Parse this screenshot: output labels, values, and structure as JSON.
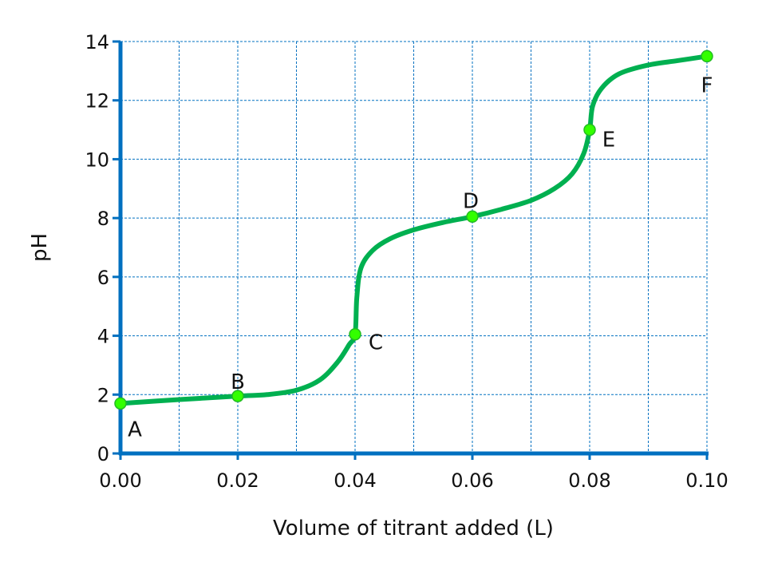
{
  "chart_data": {
    "type": "line",
    "title": "",
    "xlabel": "Volume of titrant added (L)",
    "ylabel": "pH",
    "xlim": [
      0,
      0.1
    ],
    "ylim": [
      0,
      14
    ],
    "x_ticks": [
      "0.00",
      "0.02",
      "0.04",
      "0.06",
      "0.08",
      "0.10"
    ],
    "y_ticks": [
      "0",
      "2",
      "4",
      "6",
      "8",
      "10",
      "12",
      "14"
    ],
    "grid": true,
    "colors": {
      "axis": "#0070c0",
      "grid": "#0070c0",
      "curve": "#00b050",
      "point": "#33ff00"
    },
    "curve": {
      "x": [
        0,
        0.01,
        0.02,
        0.025,
        0.03,
        0.034,
        0.037,
        0.039,
        0.04,
        0.0403,
        0.041,
        0.043,
        0.046,
        0.05,
        0.055,
        0.06,
        0.065,
        0.07,
        0.074,
        0.077,
        0.079,
        0.08,
        0.0805,
        0.082,
        0.085,
        0.09,
        0.095,
        0.1
      ],
      "y": [
        1.7,
        1.83,
        1.95,
        2.0,
        2.15,
        2.5,
        3.1,
        3.7,
        4.05,
        5.3,
        6.3,
        6.9,
        7.3,
        7.6,
        7.85,
        8.05,
        8.3,
        8.6,
        9.0,
        9.5,
        10.2,
        11.0,
        11.8,
        12.4,
        12.9,
        13.2,
        13.35,
        13.5
      ]
    },
    "points": [
      {
        "label": "A",
        "x": 0.0,
        "y": 1.7
      },
      {
        "label": "B",
        "x": 0.02,
        "y": 1.95
      },
      {
        "label": "C",
        "x": 0.04,
        "y": 4.05
      },
      {
        "label": "D",
        "x": 0.06,
        "y": 8.05
      },
      {
        "label": "E",
        "x": 0.08,
        "y": 11.0
      },
      {
        "label": "F",
        "x": 0.1,
        "y": 13.5
      }
    ]
  }
}
